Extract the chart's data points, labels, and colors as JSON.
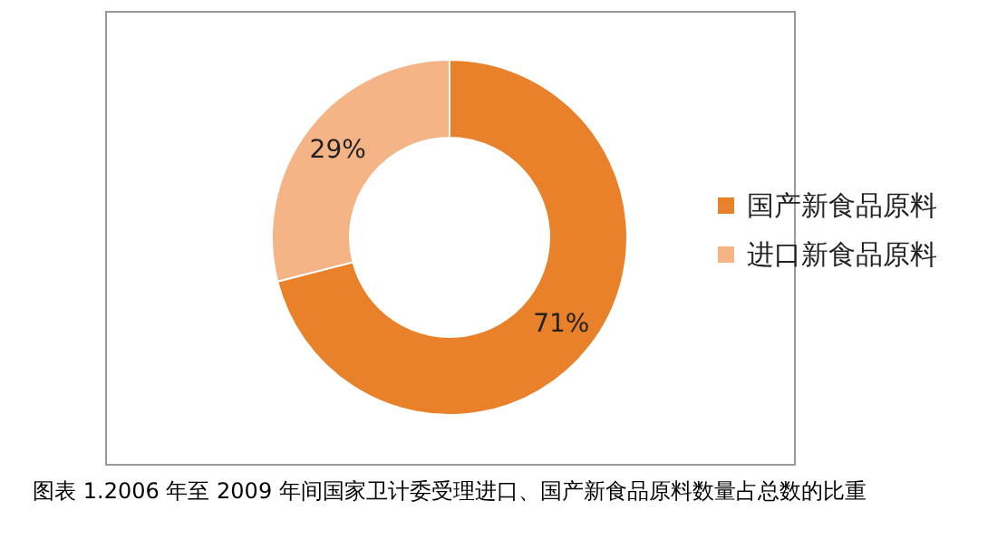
{
  "chart_data": {
    "type": "donut",
    "title": "图表 1.2006 年至 2009 年间国家卫计委受理进口、国产新食品原料数量占总数的比重",
    "categories": [
      "国产新食品原料",
      "进口新食品原料"
    ],
    "values": [
      71,
      29
    ],
    "colors": [
      "#e8812a",
      "#f5b486"
    ],
    "value_labels": [
      "71%",
      "29%"
    ],
    "legend": "right"
  }
}
